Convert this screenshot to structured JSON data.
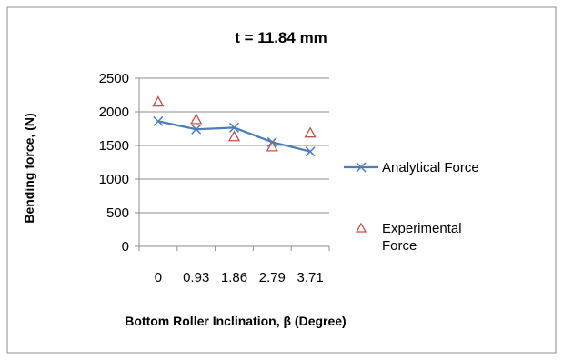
{
  "chart_data": {
    "type": "line",
    "title": "t = 11.84 mm",
    "xlabel": "Bottom Roller Inclination, β (Degree)",
    "ylabel": "Bending force, (N)",
    "categories": [
      "0",
      "0.93",
      "1.86",
      "2.79",
      "3.71"
    ],
    "ylim": [
      0,
      2500
    ],
    "yticks": [
      "0",
      "500",
      "1000",
      "1500",
      "2000",
      "2500"
    ],
    "grid": true,
    "legend_position": "right",
    "series": [
      {
        "name": "Analytical Force",
        "style": "line-x-marker",
        "color": "#4a7ebb",
        "values": [
          1860,
          1740,
          1765,
          1550,
          1410
        ]
      },
      {
        "name": "Experimental Force",
        "style": "triangle-marker",
        "color": "#c0504d",
        "values": [
          2140,
          1880,
          1625,
          1475,
          1680
        ]
      }
    ]
  }
}
